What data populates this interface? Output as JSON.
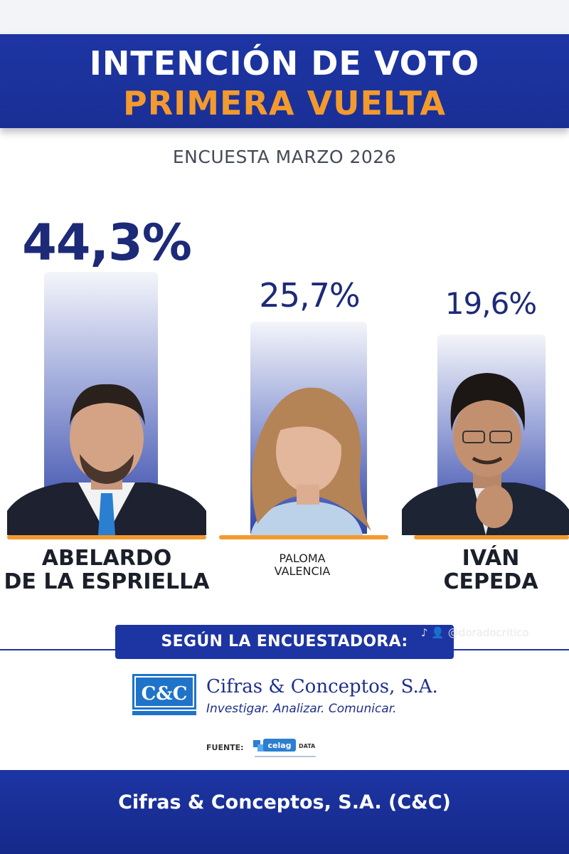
{
  "header": {
    "title_line1": "INTENCIÓN DE VOTO",
    "title_line2": "PRIMERA VUELTA",
    "subtitle": "ENCUESTA MARZO 2026"
  },
  "chart_data": {
    "type": "bar",
    "title": "INTENCIÓN DE VOTO PRIMERA VUELTA",
    "subtitle": "ENCUESTA MARZO 2026",
    "categories": [
      "ABELARDO DE LA ESPRIELLA",
      "PALOMA VALENCIA",
      "IVÁN CEPEDA"
    ],
    "values": [
      44.3,
      25.7,
      19.6
    ],
    "labels": [
      "44,3%",
      "25,7%",
      "19,6%"
    ],
    "name_lines": [
      [
        "ABELARDO",
        "DE LA ESPRIELLA"
      ],
      [
        "PALOMA",
        "VALENCIA"
      ],
      [
        "IVÁN",
        "CEPEDA"
      ]
    ],
    "ylim": [
      0,
      50
    ],
    "grid": false,
    "colors": {
      "bar_top": "#f4f5fa",
      "bar_bottom": "#3145a7",
      "baseline": "#f39a2e",
      "label": "#1d2a78"
    }
  },
  "pollster": {
    "banner": "SEGÚN LA ENCUESTADORA:",
    "logo_text": "C&C",
    "name": "Cifras & Conceptos, S.A.",
    "tagline": "Investigar. Analizar. Comunicar.",
    "source_label": "FUENTE:",
    "source_logo_text": "celag",
    "source_logo_sub": "DATA"
  },
  "watermark": "@doradocritico",
  "footer": {
    "text": "Cifras & Conceptos, S.A. (C&C)"
  },
  "colors": {
    "brand_blue": "#1d35a3",
    "accent_orange": "#f39a2e",
    "text_dark": "#1b1f2a"
  }
}
